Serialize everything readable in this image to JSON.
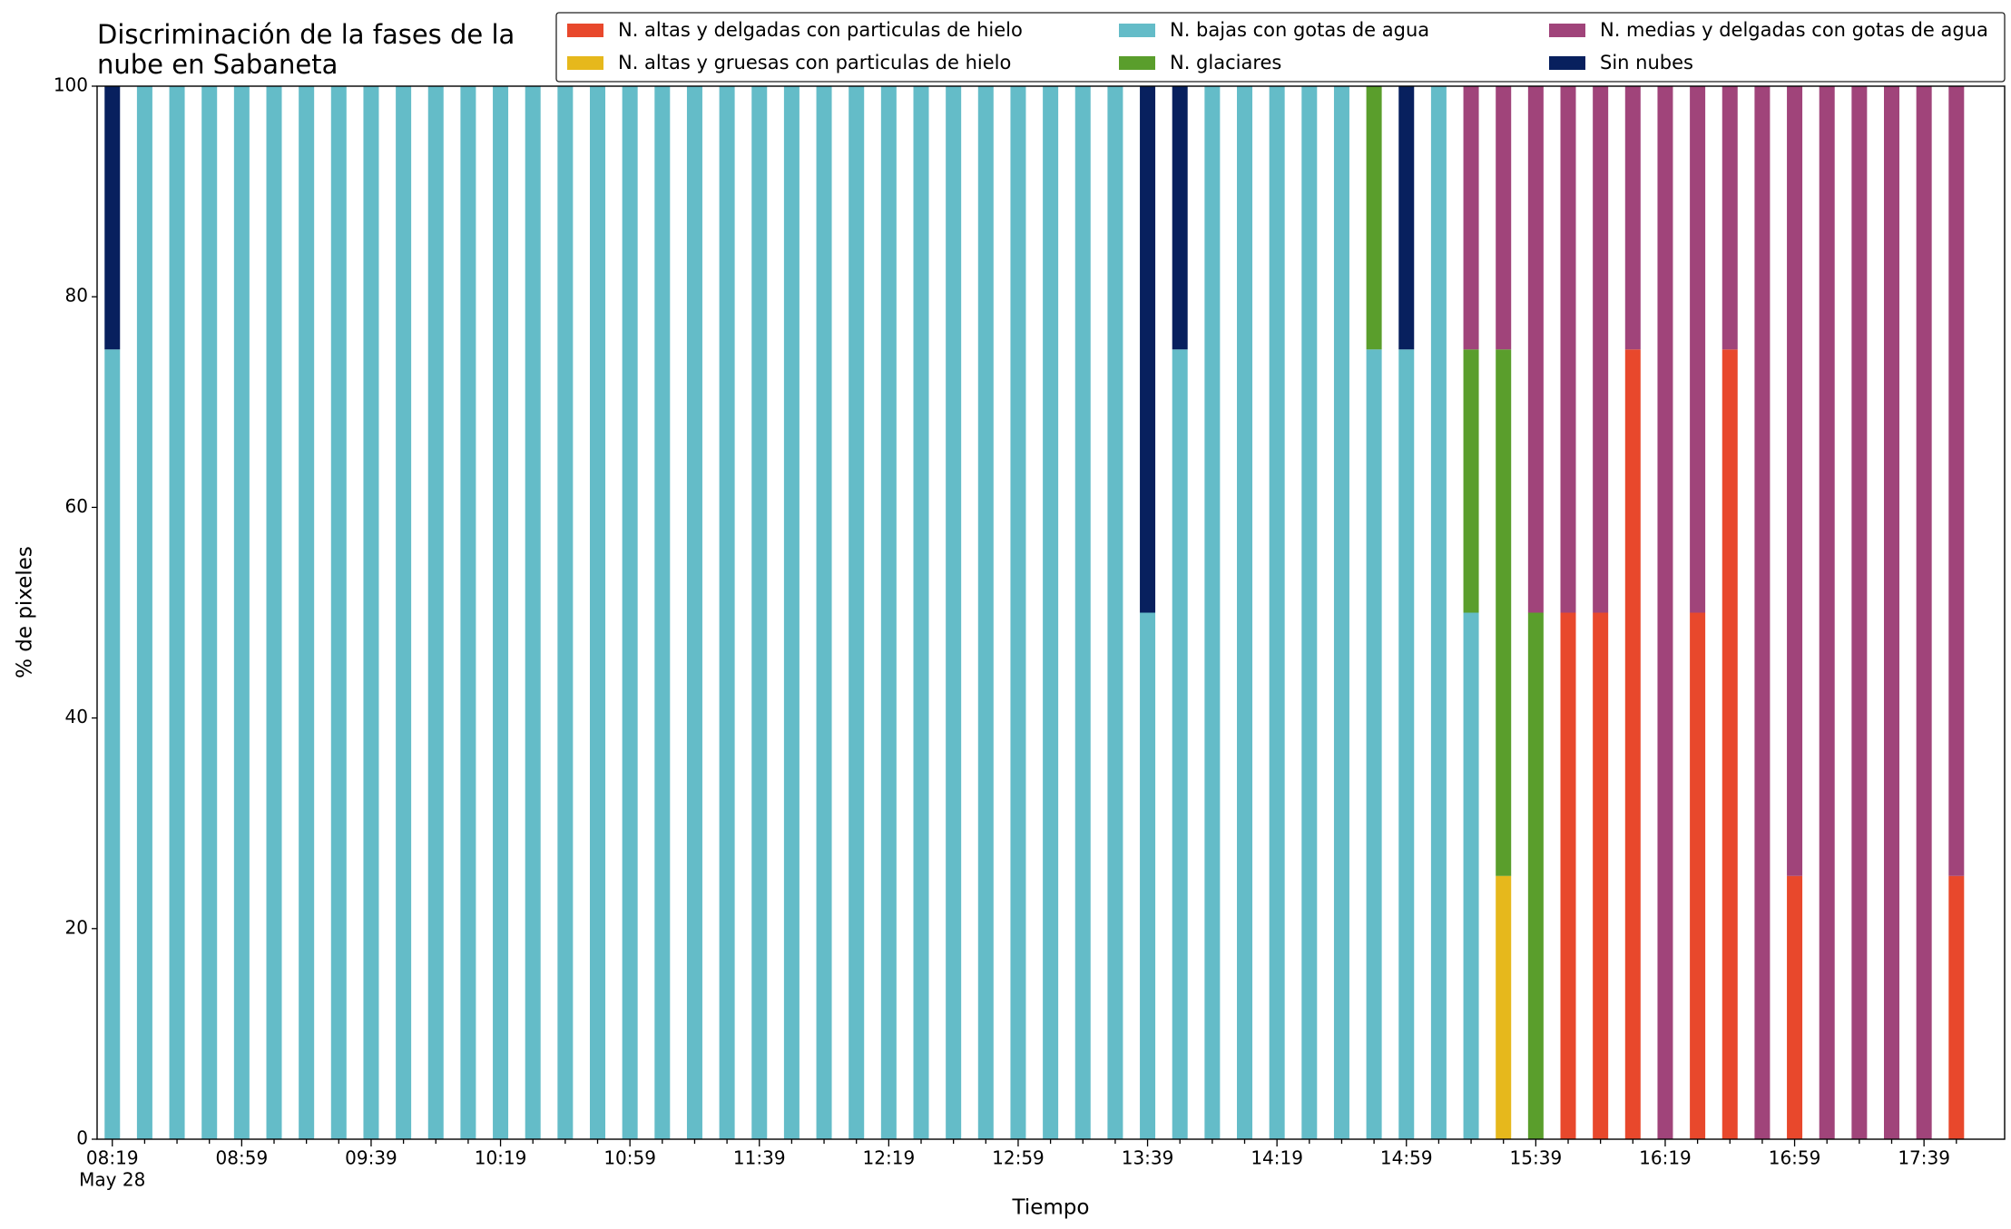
{
  "chart_data": {
    "type": "stacked_bar",
    "title": "Discriminación de la fases de la\nnube en Sabaneta",
    "x_label": "Tiempo",
    "y_label": "% de pixeles",
    "x_sublabel": "May 28",
    "categories": [
      "08:19",
      null,
      null,
      null,
      "08:59",
      null,
      null,
      null,
      "09:39",
      null,
      null,
      null,
      "10:19",
      null,
      null,
      null,
      "10:59",
      null,
      null,
      null,
      "11:39",
      null,
      null,
      null,
      "12:19",
      null,
      null,
      null,
      "12:59",
      null,
      null,
      null,
      "13:39",
      null,
      null,
      null,
      "14:19",
      null,
      null,
      null,
      "14:59",
      null,
      null,
      null,
      "15:39",
      null,
      null,
      null,
      "16:19",
      null,
      null,
      null,
      "16:59",
      null,
      null,
      null,
      "17:39",
      null
    ],
    "ylim": [
      0,
      100
    ],
    "yticks": [
      0,
      20,
      40,
      60,
      80,
      100
    ],
    "grid": false,
    "legend": "top-right",
    "series": [
      {
        "name": "N. altas y delgadas con particulas de hielo",
        "color": "#e8482c",
        "values": [
          0,
          0,
          0,
          0,
          0,
          0,
          0,
          0,
          0,
          0,
          0,
          0,
          0,
          0,
          0,
          0,
          0,
          0,
          0,
          0,
          0,
          0,
          0,
          0,
          0,
          0,
          0,
          0,
          0,
          0,
          0,
          0,
          0,
          0,
          0,
          0,
          0,
          0,
          0,
          0,
          0,
          0,
          0,
          0,
          0,
          50,
          50,
          75,
          0,
          50,
          75,
          0,
          25,
          0,
          0,
          0,
          0,
          25
        ]
      },
      {
        "name": "N. altas y gruesas con particulas de hielo",
        "color": "#e6b81c",
        "values": [
          0,
          0,
          0,
          0,
          0,
          0,
          0,
          0,
          0,
          0,
          0,
          0,
          0,
          0,
          0,
          0,
          0,
          0,
          0,
          0,
          0,
          0,
          0,
          0,
          0,
          0,
          0,
          0,
          0,
          0,
          0,
          0,
          0,
          0,
          0,
          0,
          0,
          0,
          0,
          0,
          0,
          0,
          0,
          25,
          0,
          0,
          0,
          0,
          0,
          0,
          0,
          0,
          0,
          0,
          0,
          0,
          0,
          0
        ]
      },
      {
        "name": "N. bajas con gotas de agua",
        "color": "#64bcc8",
        "values": [
          75,
          100,
          100,
          100,
          100,
          100,
          100,
          100,
          100,
          100,
          100,
          100,
          100,
          100,
          100,
          100,
          100,
          100,
          100,
          100,
          100,
          100,
          100,
          100,
          100,
          100,
          100,
          100,
          100,
          100,
          100,
          100,
          50,
          75,
          100,
          100,
          100,
          100,
          100,
          75,
          75,
          100,
          50,
          0,
          0,
          0,
          0,
          0,
          0,
          0,
          0,
          0,
          0,
          0,
          0,
          0,
          0,
          0
        ]
      },
      {
        "name": "N. glaciares",
        "color": "#5a9e2c",
        "values": [
          0,
          0,
          0,
          0,
          0,
          0,
          0,
          0,
          0,
          0,
          0,
          0,
          0,
          0,
          0,
          0,
          0,
          0,
          0,
          0,
          0,
          0,
          0,
          0,
          0,
          0,
          0,
          0,
          0,
          0,
          0,
          0,
          0,
          0,
          0,
          0,
          0,
          0,
          0,
          25,
          0,
          0,
          25,
          50,
          50,
          0,
          0,
          0,
          0,
          0,
          0,
          0,
          0,
          0,
          0,
          0,
          0,
          0
        ]
      },
      {
        "name": "N. medias y delgadas con gotas de agua",
        "color": "#a0447a",
        "values": [
          0,
          0,
          0,
          0,
          0,
          0,
          0,
          0,
          0,
          0,
          0,
          0,
          0,
          0,
          0,
          0,
          0,
          0,
          0,
          0,
          0,
          0,
          0,
          0,
          0,
          0,
          0,
          0,
          0,
          0,
          0,
          0,
          0,
          0,
          0,
          0,
          0,
          0,
          0,
          0,
          0,
          0,
          25,
          25,
          50,
          50,
          50,
          25,
          100,
          50,
          25,
          100,
          75,
          100,
          100,
          100,
          100,
          75
        ]
      },
      {
        "name": "Sin nubes",
        "color": "#08205e",
        "values": [
          25,
          0,
          0,
          0,
          0,
          0,
          0,
          0,
          0,
          0,
          0,
          0,
          0,
          0,
          0,
          0,
          0,
          0,
          0,
          0,
          0,
          0,
          0,
          0,
          0,
          0,
          0,
          0,
          0,
          0,
          0,
          0,
          50,
          25,
          0,
          0,
          0,
          0,
          0,
          0,
          25,
          0,
          0,
          0,
          0,
          0,
          0,
          0,
          0,
          0,
          0,
          0,
          0,
          0,
          0,
          0,
          0,
          0
        ]
      }
    ]
  }
}
